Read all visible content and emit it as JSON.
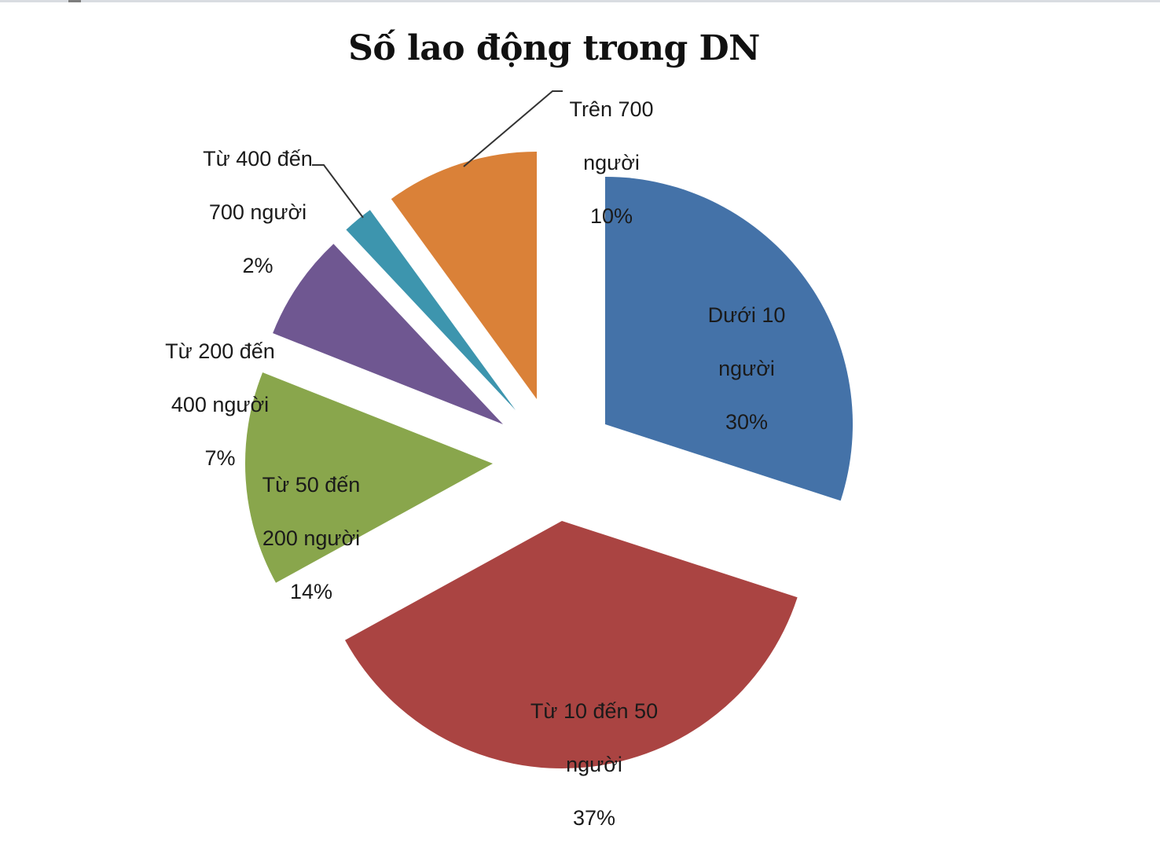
{
  "chart_data": {
    "type": "pie",
    "title": "Số lao động trong DN",
    "exploded": true,
    "start_angle_deg": 0,
    "direction": "clockwise",
    "categories": [
      "Dưới 10 người",
      "Từ 10 đến 50 người",
      "Từ 50 đến 200 người",
      "Từ 200 đến 400 người",
      "Từ 400 đến 700 người",
      "Trên 700 người"
    ],
    "values": [
      30,
      37,
      14,
      7,
      2,
      10
    ],
    "unit": "%",
    "colors": [
      "#4472a8",
      "#aa4442",
      "#89a64c",
      "#6f5791",
      "#3d95ae",
      "#da8138"
    ],
    "legend": "none",
    "data_labels": "category name + percent"
  },
  "labels": {
    "s0": {
      "line1": "Dưới 10",
      "line2": "người",
      "line3": "30%"
    },
    "s1": {
      "line1": "Từ 10 đến 50",
      "line2": "người",
      "line3": "37%"
    },
    "s2": {
      "line1": "Từ 50 đến",
      "line2": "200 người",
      "line3": "14%"
    },
    "s3": {
      "line1": "Từ 200 đến",
      "line2": "400 người",
      "line3": "7%"
    },
    "s4": {
      "line1": "Từ 400 đến",
      "line2": "700 người",
      "line3": "2%"
    },
    "s5": {
      "line1": "Trên 700",
      "line2": "người",
      "line3": "10%"
    }
  }
}
